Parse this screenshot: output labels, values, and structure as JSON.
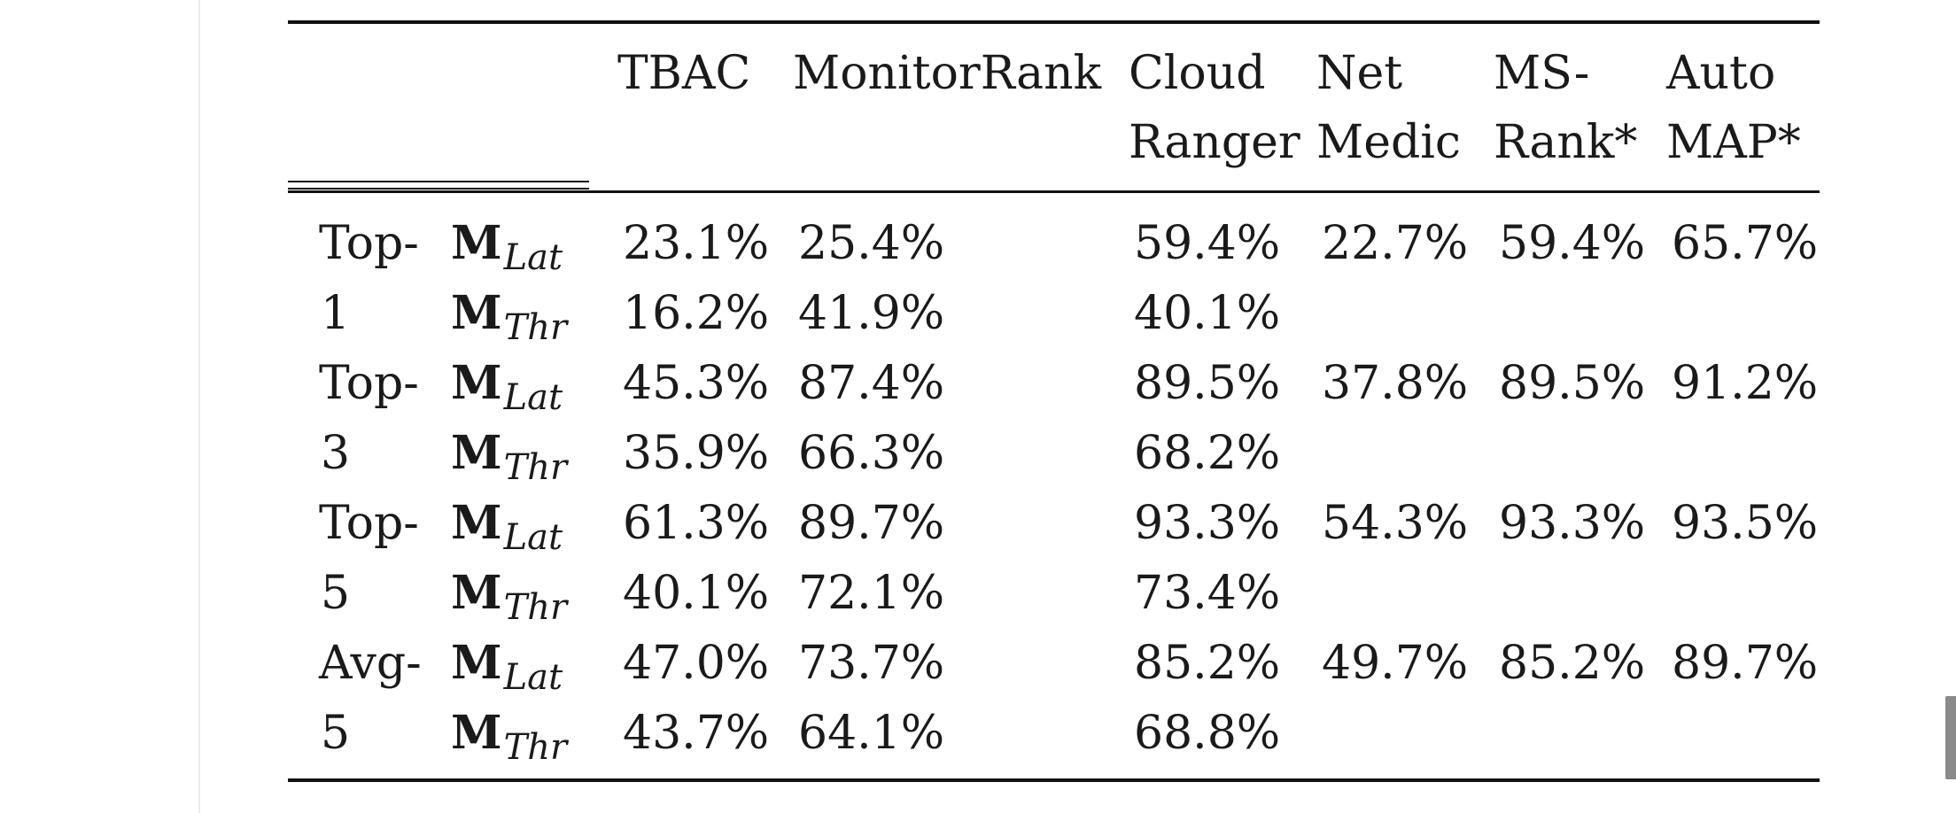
{
  "table": {
    "columns": [
      {
        "line1": "TBAC",
        "line2": ""
      },
      {
        "line1": "MonitorRank",
        "line2": ""
      },
      {
        "line1": "Cloud",
        "line2": "Ranger"
      },
      {
        "line1": "Net",
        "line2": "Medic"
      },
      {
        "line1": "MS-",
        "line2": "Rank*"
      },
      {
        "line1": "Auto",
        "line2": "MAP*"
      }
    ],
    "metric_symbol": "M",
    "metric_lat_sub": "Lat",
    "metric_thr_sub": "Thr",
    "groups": [
      {
        "label_line1": "Top-",
        "label_line2": "1",
        "lat": [
          "23.1%",
          "25.4%",
          "59.4%",
          "22.7%",
          "59.4%",
          "65.7%"
        ],
        "thr": [
          "16.2%",
          "41.9%",
          "40.1%",
          "",
          "",
          ""
        ]
      },
      {
        "label_line1": "Top-",
        "label_line2": "3",
        "lat": [
          "45.3%",
          "87.4%",
          "89.5%",
          "37.8%",
          "89.5%",
          "91.2%"
        ],
        "thr": [
          "35.9%",
          "66.3%",
          "68.2%",
          "",
          "",
          ""
        ]
      },
      {
        "label_line1": "Top-",
        "label_line2": "5",
        "lat": [
          "61.3%",
          "89.7%",
          "93.3%",
          "54.3%",
          "93.3%",
          "93.5%"
        ],
        "thr": [
          "40.1%",
          "72.1%",
          "73.4%",
          "",
          "",
          ""
        ]
      },
      {
        "label_line1": "Avg-",
        "label_line2": "5",
        "lat": [
          "47.0%",
          "73.7%",
          "85.2%",
          "49.7%",
          "85.2%",
          "89.7%"
        ],
        "thr": [
          "43.7%",
          "64.1%",
          "68.8%",
          "",
          "",
          ""
        ]
      }
    ]
  }
}
